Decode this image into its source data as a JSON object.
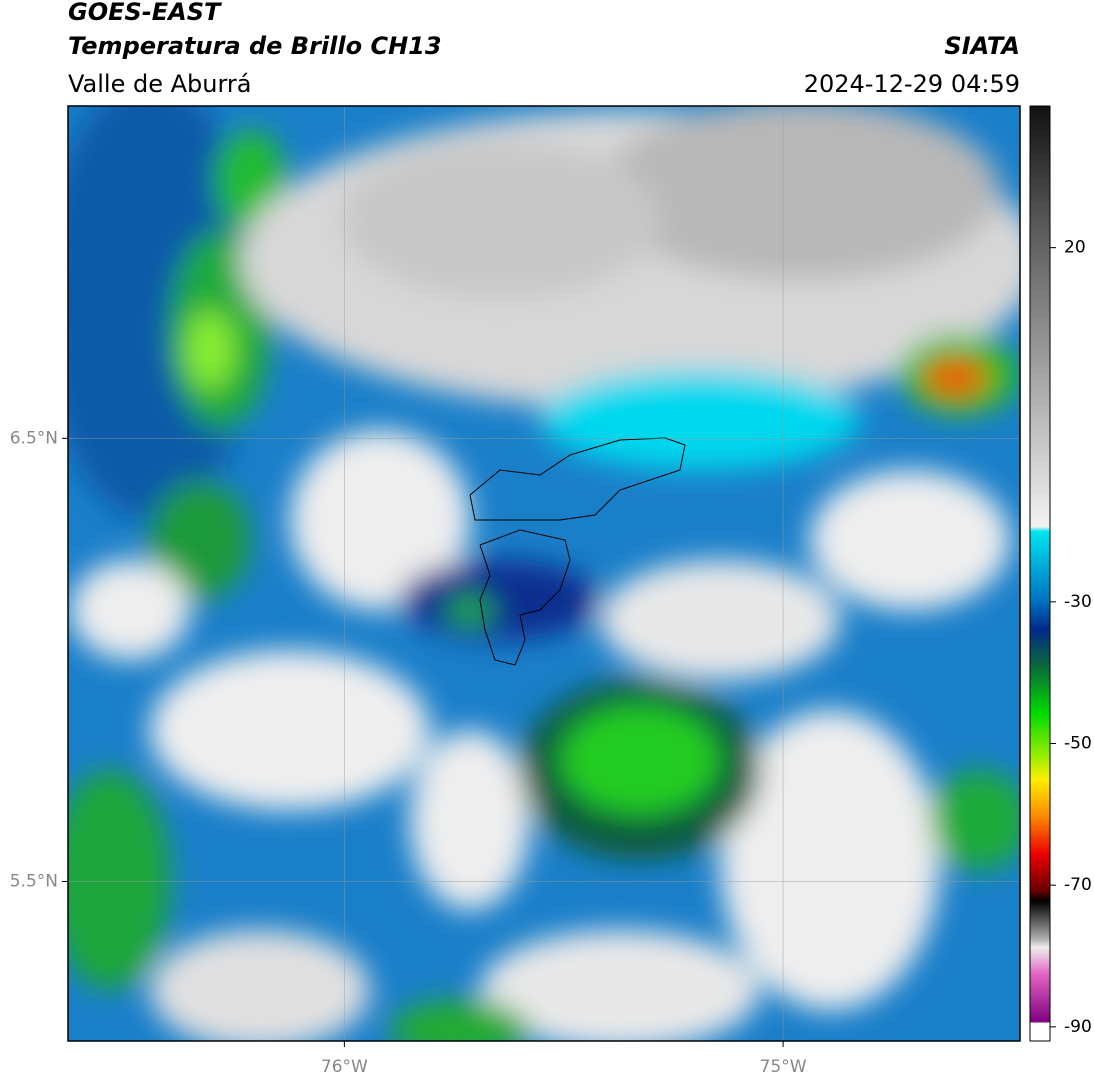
{
  "header": {
    "title": "GOES-EAST",
    "subtitle": "Temperatura de Brillo CH13",
    "region": "Valle de Aburrá",
    "source": "SIATA",
    "timestamp": "2024-12-29 04:59"
  },
  "map": {
    "xlim": [
      -76.63,
      -74.46
    ],
    "ylim": [
      5.14,
      7.25
    ],
    "xticks": [
      {
        "value": -76,
        "label": "76°W"
      },
      {
        "value": -75,
        "label": "75°W"
      }
    ],
    "yticks": [
      {
        "value": 6.5,
        "label": "6.5°N"
      },
      {
        "value": 5.5,
        "label": "5.5°N"
      }
    ],
    "grid": true
  },
  "colorbar": {
    "lim": [
      -92,
      40
    ],
    "ticks": [
      20,
      -30,
      -50,
      -70,
      -90
    ]
  }
}
